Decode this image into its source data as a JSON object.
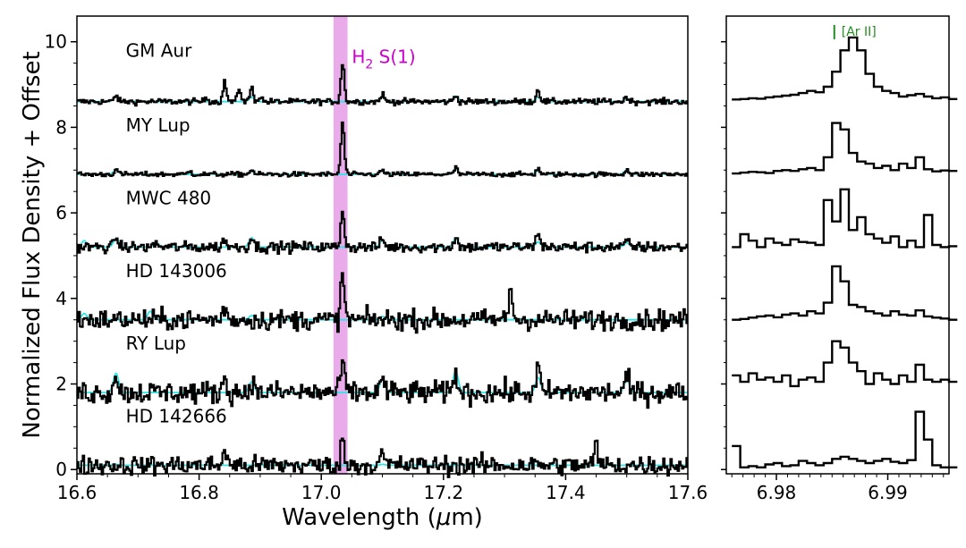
{
  "chart_data": [
    {
      "type": "line",
      "title": "",
      "xlabel": "Wavelength (μm)",
      "xlabel_main": "Wavelength (",
      "xlabel_mu": "μ",
      "xlabel_unit": "m)",
      "ylabel": "Normalized Flux Density + Offset",
      "xlim": [
        16.6,
        17.6
      ],
      "ylim": [
        -0.1,
        10.6
      ],
      "xticks": [
        16.6,
        16.8,
        17.0,
        17.2,
        17.4,
        17.6
      ],
      "xtick_labels": [
        "16.6",
        "16.8",
        "17.0",
        "17.2",
        "17.4",
        "17.6"
      ],
      "yticks": [
        0,
        2,
        4,
        6,
        8,
        10
      ],
      "ytick_labels": [
        "0",
        "2",
        "4",
        "6",
        "8",
        "10"
      ],
      "grid": false,
      "highlight_band": {
        "x_range": [
          17.02,
          17.043
        ],
        "color": "#e38fe3"
      },
      "annotation": {
        "prefix": "H",
        "sub": "2",
        "suffix": " S(1)",
        "x": 17.05,
        "y": 9.5,
        "color": "#cc00cc"
      },
      "series": [
        {
          "name": "GM Aur",
          "offset": 8.6,
          "noise": 0.05,
          "label_x": 16.68,
          "label_y": 9.65,
          "peaks": [
            [
              16.664,
              0.15
            ],
            [
              16.812,
              0.1
            ],
            [
              16.842,
              0.45
            ],
            [
              16.866,
              0.3
            ],
            [
              16.886,
              0.32
            ],
            [
              16.9,
              0.12
            ],
            [
              17.035,
              0.9
            ],
            [
              17.1,
              0.18
            ],
            [
              17.22,
              0.15
            ],
            [
              17.355,
              0.3
            ],
            [
              17.5,
              0.12
            ]
          ],
          "model_peaks": [
            [
              16.664,
              0.12
            ],
            [
              16.886,
              0.1
            ],
            [
              17.1,
              0.12
            ],
            [
              17.22,
              0.13
            ],
            [
              17.355,
              0.1
            ],
            [
              17.5,
              0.08
            ]
          ]
        },
        {
          "name": "MY Lup",
          "offset": 6.9,
          "noise": 0.04,
          "label_x": 16.68,
          "label_y": 7.9,
          "peaks": [
            [
              16.664,
              0.12
            ],
            [
              16.785,
              0.08
            ],
            [
              16.886,
              0.12
            ],
            [
              17.035,
              1.2
            ],
            [
              17.1,
              0.1
            ],
            [
              17.22,
              0.15
            ],
            [
              17.355,
              0.15
            ],
            [
              17.5,
              0.12
            ]
          ],
          "model_peaks": [
            [
              16.664,
              0.1
            ],
            [
              16.886,
              0.08
            ],
            [
              17.1,
              0.08
            ],
            [
              17.22,
              0.12
            ],
            [
              17.355,
              0.08
            ],
            [
              17.5,
              0.1
            ]
          ]
        },
        {
          "name": "MWC 480",
          "offset": 5.2,
          "noise": 0.09,
          "label_x": 16.68,
          "label_y": 6.2,
          "peaks": [
            [
              16.664,
              0.25
            ],
            [
              16.73,
              0.1
            ],
            [
              16.842,
              0.2
            ],
            [
              16.886,
              0.25
            ],
            [
              17.035,
              0.9
            ],
            [
              17.1,
              0.2
            ],
            [
              17.22,
              0.25
            ],
            [
              17.355,
              0.4
            ],
            [
              17.5,
              0.15
            ]
          ],
          "model_peaks": [
            [
              16.612,
              0.15
            ],
            [
              16.664,
              0.2
            ],
            [
              16.73,
              0.1
            ],
            [
              16.886,
              0.22
            ],
            [
              17.1,
              0.15
            ],
            [
              17.22,
              0.2
            ],
            [
              17.355,
              0.12
            ],
            [
              17.5,
              0.1
            ]
          ]
        },
        {
          "name": "HD 143006",
          "offset": 3.5,
          "noise": 0.17,
          "label_x": 16.68,
          "label_y": 4.5,
          "peaks": [
            [
              16.842,
              0.3
            ],
            [
              17.035,
              1.1
            ],
            [
              17.31,
              0.8
            ]
          ],
          "model_peaks": [
            [
              16.612,
              0.15
            ],
            [
              16.72,
              0.2
            ],
            [
              16.886,
              0.1
            ],
            [
              17.1,
              0.08
            ]
          ]
        },
        {
          "name": "RY Lup",
          "offset": 1.8,
          "noise": 0.19,
          "label_x": 16.68,
          "label_y": 2.8,
          "peaks": [
            [
              16.664,
              0.5
            ],
            [
              16.842,
              0.4
            ],
            [
              16.886,
              0.3
            ],
            [
              17.035,
              0.8
            ],
            [
              17.1,
              0.4
            ],
            [
              17.22,
              0.5
            ],
            [
              17.355,
              0.6
            ],
            [
              17.5,
              0.4
            ]
          ],
          "model_peaks": [
            [
              16.664,
              0.45
            ],
            [
              16.886,
              0.25
            ],
            [
              17.1,
              0.3
            ],
            [
              17.22,
              0.5
            ],
            [
              17.355,
              0.35
            ],
            [
              17.5,
              0.3
            ]
          ]
        },
        {
          "name": "HD 142666",
          "offset": 0.1,
          "noise": 0.16,
          "label_x": 16.68,
          "label_y": 1.1,
          "peaks": [
            [
              16.842,
              0.4
            ],
            [
              17.035,
              0.6
            ],
            [
              17.1,
              0.3
            ],
            [
              17.45,
              0.5
            ]
          ],
          "model_peaks": [
            [
              16.664,
              0.02
            ],
            [
              17.1,
              0.02
            ]
          ]
        }
      ]
    },
    {
      "type": "line",
      "title": "",
      "xlabel": "",
      "ylabel": "",
      "xlim": [
        6.9755,
        6.9955
      ],
      "ylim": [
        -0.1,
        10.6
      ],
      "xticks": [
        6.98,
        6.99
      ],
      "xtick_labels": [
        "6.98",
        "6.99"
      ],
      "grid": false,
      "annotation": {
        "text": "[Ar II]",
        "x": 6.9852,
        "y": 10.1,
        "color": "#228b22"
      },
      "series": [
        {
          "name": "GM Aur",
          "x_start": 6.976,
          "step": 0.00075,
          "values": [
            8.65,
            8.66,
            8.68,
            8.67,
            8.7,
            8.72,
            8.74,
            8.76,
            8.8,
            8.85,
            8.82,
            8.95,
            9.3,
            9.8,
            10.1,
            9.8,
            9.25,
            8.95,
            8.85,
            8.8,
            8.72,
            8.75,
            8.78,
            8.72,
            8.68,
            8.7,
            8.66
          ]
        },
        {
          "name": "MY Lup",
          "x_start": 6.976,
          "step": 0.00075,
          "values": [
            6.92,
            6.94,
            6.96,
            6.95,
            6.93,
            6.98,
            7.0,
            6.98,
            7.02,
            7.05,
            7.0,
            7.3,
            8.1,
            7.95,
            7.4,
            7.2,
            7.15,
            7.05,
            7.1,
            7.0,
            7.15,
            7.05,
            7.3,
            7.02,
            6.97,
            6.99,
            6.98
          ]
        },
        {
          "name": "MWC 480",
          "x_start": 6.976,
          "step": 0.00075,
          "values": [
            5.2,
            5.5,
            5.35,
            5.2,
            5.4,
            5.3,
            5.25,
            5.38,
            5.32,
            5.3,
            5.25,
            6.3,
            5.8,
            6.55,
            5.6,
            5.9,
            5.5,
            5.4,
            5.3,
            5.45,
            5.2,
            5.35,
            5.2,
            5.95,
            5.25,
            5.2,
            5.22
          ]
        },
        {
          "name": "HD 143006",
          "x_start": 6.976,
          "step": 0.00075,
          "values": [
            3.5,
            3.52,
            3.55,
            3.58,
            3.6,
            3.56,
            3.62,
            3.65,
            3.6,
            3.7,
            3.65,
            3.9,
            4.75,
            4.4,
            3.85,
            3.8,
            3.7,
            3.65,
            3.6,
            3.7,
            3.62,
            3.6,
            3.72,
            3.58,
            3.55,
            3.53,
            3.5
          ]
        },
        {
          "name": "RY Lup",
          "x_start": 6.976,
          "step": 0.00075,
          "values": [
            2.2,
            2.05,
            2.25,
            2.1,
            2.15,
            2.05,
            2.2,
            1.95,
            2.1,
            2.15,
            2.05,
            2.5,
            3.0,
            2.85,
            2.5,
            2.3,
            2.0,
            2.25,
            2.1,
            2.0,
            2.2,
            2.05,
            2.45,
            2.1,
            2.05,
            2.1,
            2.05
          ]
        },
        {
          "name": "HD 142666",
          "x_start": 6.976,
          "step": 0.00075,
          "values": [
            0.55,
            0.05,
            0.08,
            0.05,
            0.12,
            0.15,
            0.08,
            0.1,
            0.2,
            0.15,
            0.1,
            0.15,
            0.25,
            0.3,
            0.25,
            0.2,
            0.15,
            0.2,
            0.25,
            0.18,
            0.15,
            0.22,
            1.35,
            0.7,
            0.1,
            0.05,
            0.05
          ]
        }
      ]
    }
  ]
}
